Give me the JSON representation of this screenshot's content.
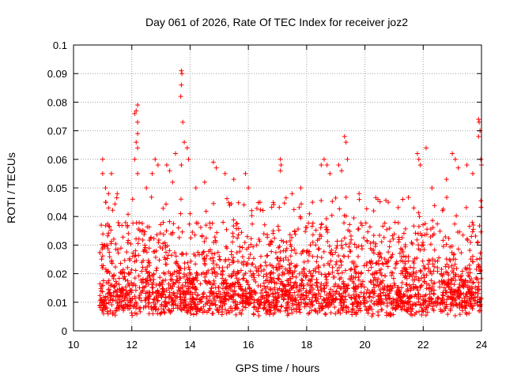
{
  "chart_data": {
    "type": "scatter",
    "title": "Day 061 of 2026, Rate Of TEC Index for receiver joz2",
    "xlabel": "GPS time / hours",
    "ylabel": "ROTI / TECUs",
    "xlim": [
      10,
      24
    ],
    "ylim": [
      0,
      0.1
    ],
    "xticks": [
      10,
      12,
      14,
      16,
      18,
      20,
      22,
      24
    ],
    "yticks": [
      0,
      0.01,
      0.02,
      0.03,
      0.04,
      0.05,
      0.06,
      0.07,
      0.08,
      0.09,
      0.1
    ],
    "xtick_labels": [
      "10",
      "12",
      "14",
      "16",
      "18",
      "20",
      "22",
      "24"
    ],
    "ytick_labels": [
      "0",
      "0.01",
      "0.02",
      "0.03",
      "0.04",
      "0.05",
      "0.06",
      "0.07",
      "0.08",
      "0.09",
      "0.1"
    ],
    "grid": true,
    "marker": "+",
    "marker_color": "#ff0000",
    "data_time_range": [
      10.9,
      24.0
    ],
    "series": [
      {
        "name": "ROTI",
        "points": [
          [
            11.0,
            0.06
          ],
          [
            11.0,
            0.055
          ],
          [
            11.1,
            0.05
          ],
          [
            11.2,
            0.048
          ],
          [
            11.3,
            0.055
          ],
          [
            11.5,
            0.048
          ],
          [
            11.1,
            0.045
          ],
          [
            11.2,
            0.043
          ],
          [
            12.1,
            0.076
          ],
          [
            12.15,
            0.077
          ],
          [
            12.2,
            0.079
          ],
          [
            12.2,
            0.073
          ],
          [
            12.2,
            0.069
          ],
          [
            12.15,
            0.066
          ],
          [
            12.2,
            0.064
          ],
          [
            12.1,
            0.06
          ],
          [
            12.2,
            0.055
          ],
          [
            12.5,
            0.05
          ],
          [
            12.8,
            0.06
          ],
          [
            12.9,
            0.058
          ],
          [
            12.7,
            0.055
          ],
          [
            13.2,
            0.058
          ],
          [
            13.3,
            0.056
          ],
          [
            13.4,
            0.052
          ],
          [
            13.5,
            0.062
          ],
          [
            13.7,
            0.091
          ],
          [
            13.72,
            0.09
          ],
          [
            13.7,
            0.086
          ],
          [
            13.68,
            0.082
          ],
          [
            13.75,
            0.073
          ],
          [
            13.8,
            0.066
          ],
          [
            13.9,
            0.064
          ],
          [
            13.95,
            0.06
          ],
          [
            13.7,
            0.058
          ],
          [
            14.2,
            0.05
          ],
          [
            14.5,
            0.052
          ],
          [
            14.8,
            0.059
          ],
          [
            14.9,
            0.057
          ],
          [
            15.2,
            0.055
          ],
          [
            15.5,
            0.053
          ],
          [
            15.9,
            0.055
          ],
          [
            16.0,
            0.05
          ],
          [
            16.4,
            0.045
          ],
          [
            17.1,
            0.06
          ],
          [
            17.12,
            0.058
          ],
          [
            17.1,
            0.056
          ],
          [
            17.5,
            0.048
          ],
          [
            17.8,
            0.05
          ],
          [
            18.2,
            0.045
          ],
          [
            18.5,
            0.058
          ],
          [
            18.6,
            0.06
          ],
          [
            18.7,
            0.058
          ],
          [
            18.8,
            0.055
          ],
          [
            19.1,
            0.058
          ],
          [
            19.2,
            0.056
          ],
          [
            19.3,
            0.068
          ],
          [
            19.35,
            0.066
          ],
          [
            19.4,
            0.06
          ],
          [
            19.8,
            0.048
          ],
          [
            20.3,
            0.042
          ],
          [
            20.8,
            0.045
          ],
          [
            21.3,
            0.046
          ],
          [
            21.8,
            0.062
          ],
          [
            21.85,
            0.06
          ],
          [
            21.9,
            0.058
          ],
          [
            22.1,
            0.064
          ],
          [
            22.3,
            0.05
          ],
          [
            22.8,
            0.053
          ],
          [
            23.0,
            0.062
          ],
          [
            23.1,
            0.06
          ],
          [
            23.2,
            0.057
          ],
          [
            23.5,
            0.058
          ],
          [
            23.7,
            0.055
          ],
          [
            23.9,
            0.074
          ],
          [
            23.92,
            0.073
          ],
          [
            23.95,
            0.07
          ],
          [
            23.9,
            0.068
          ],
          [
            23.98,
            0.06
          ],
          [
            24.0,
            0.058
          ]
        ]
      }
    ],
    "density_profile_note": "Dense band of points between 0.005 and 0.025 across 10.9-24 h with frequent excursions to 0.03-0.05; the peak envelope values listed above."
  }
}
